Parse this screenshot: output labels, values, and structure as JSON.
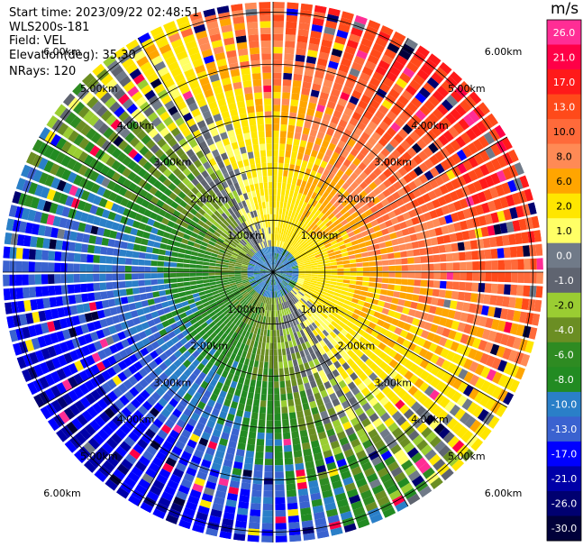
{
  "header": {
    "start_time": "Start time: 2023/09/22 02:48:51",
    "instrument": "WLS200s-181",
    "field": "Field: VEL",
    "elevation": "Elevation(deg): 35.30",
    "nrays": "NRays: 120"
  },
  "colorbar": {
    "unit": "m/s",
    "levels": [
      {
        "label": "26.0",
        "color": "#ff2d95"
      },
      {
        "label": "21.0",
        "color": "#ff0047"
      },
      {
        "label": "17.0",
        "color": "#ff1a1a"
      },
      {
        "label": "13.0",
        "color": "#ff4a1a"
      },
      {
        "label": "10.0",
        "color": "#ff6a3a"
      },
      {
        "label": "8.0",
        "color": "#ff8a55"
      },
      {
        "label": "6.0",
        "color": "#ffa500"
      },
      {
        "label": "2.0",
        "color": "#ffe600"
      },
      {
        "label": "1.0",
        "color": "#ffff66"
      },
      {
        "label": "0.0",
        "color": "#707a88"
      },
      {
        "label": "-1.0",
        "color": "#5f6470"
      },
      {
        "label": "-2.0",
        "color": "#9acd32"
      },
      {
        "label": "-4.0",
        "color": "#6b8e23"
      },
      {
        "label": "-6.0",
        "color": "#2e8b22"
      },
      {
        "label": "-8.0",
        "color": "#228b22"
      },
      {
        "label": "-10.0",
        "color": "#2a7fc8"
      },
      {
        "label": "-13.0",
        "color": "#3a62d0"
      },
      {
        "label": "-17.0",
        "color": "#0000ff"
      },
      {
        "label": "-21.0",
        "color": "#0000a8"
      },
      {
        "label": "-26.0",
        "color": "#000070"
      },
      {
        "label": "-30.0",
        "color": "#00003a"
      }
    ]
  },
  "chart_data": {
    "type": "heatmap",
    "projection": "polar PPI",
    "field": "VEL",
    "unit": "m/s",
    "n_rays": 120,
    "range_rings_km": [
      1.0,
      2.0,
      3.0,
      4.0,
      5.0,
      6.0
    ],
    "range_ring_labels": [
      "1.00km",
      "2.00km",
      "3.00km",
      "4.00km",
      "5.00km",
      "6.00km"
    ],
    "max_range_km": 5.2,
    "color_limits": [
      -30.0,
      26.0
    ],
    "pattern": "receding (positive) velocities toward the east/northeast, approaching (negative) velocities toward the west/southwest, zero line running roughly SE-NW"
  }
}
